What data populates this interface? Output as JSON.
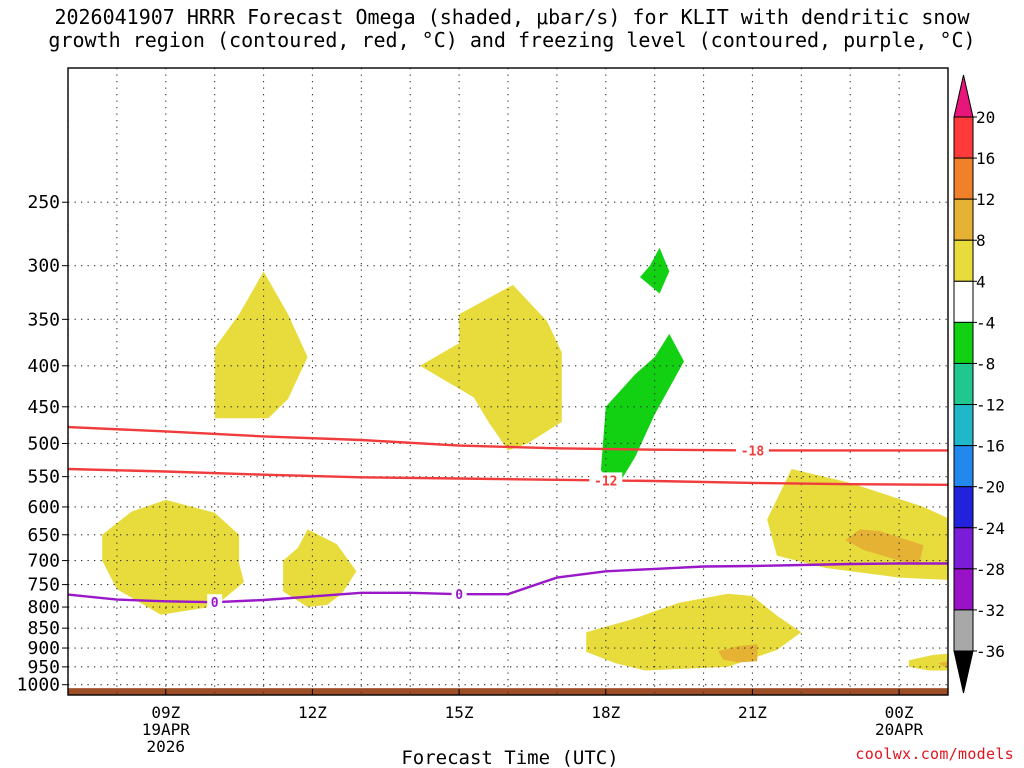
{
  "title": {
    "line1": "2026041907 HRRR Forecast Omega (shaded, μbar/s) for KLIT with dendritic snow",
    "line2": "growth region (contoured, red, °C) and freezing level (contoured, purple, °C)"
  },
  "credit": "coolwx.com/models",
  "chart_data": {
    "type": "contour",
    "xlabel": "Forecast Time (UTC)",
    "ylabel": "",
    "xlim": [
      7,
      25
    ],
    "ylim_hPa": [
      1030,
      170
    ],
    "y_scale": "log-pressure",
    "grid": true,
    "y_ticks": [
      250,
      300,
      350,
      400,
      450,
      500,
      550,
      600,
      650,
      700,
      750,
      800,
      850,
      900,
      950,
      1000
    ],
    "x_ticks": [
      {
        "x": 9,
        "lines": [
          "09Z",
          "19APR",
          "2026"
        ]
      },
      {
        "x": 12,
        "lines": [
          "12Z"
        ]
      },
      {
        "x": 15,
        "lines": [
          "15Z"
        ]
      },
      {
        "x": 18,
        "lines": [
          "18Z"
        ]
      },
      {
        "x": 21,
        "lines": [
          "21Z"
        ]
      },
      {
        "x": 24,
        "lines": [
          "00Z",
          "20APR"
        ]
      }
    ],
    "colorbar": {
      "levels": [
        20,
        16,
        12,
        8,
        4,
        -4,
        -8,
        -12,
        -16,
        -20,
        -24,
        -28,
        -32,
        -36
      ],
      "colors": [
        "#ff3a3a",
        "#f0802a",
        "#e6b234",
        "#e8dc3c",
        "#ffffff",
        "#12d012",
        "#20c890",
        "#20b8c8",
        "#2288ee",
        "#2222dd",
        "#7a1cd8",
        "#9a12c8",
        "#a8a8a8"
      ],
      "top_color": "#e8167a",
      "bottom_color": "#000000"
    },
    "contours": [
      {
        "name": "dendritic snow growth region",
        "color": "#f03c3c",
        "label": "-18",
        "label_x": 21.0,
        "points": [
          [
            7,
            477
          ],
          [
            9,
            483
          ],
          [
            11,
            490
          ],
          [
            13,
            495
          ],
          [
            15,
            503
          ],
          [
            17,
            507
          ],
          [
            19,
            509
          ],
          [
            21,
            510
          ],
          [
            23,
            510
          ],
          [
            25,
            510
          ]
        ]
      },
      {
        "name": "dendritic snow growth region",
        "color": "#f03c3c",
        "label": "-12",
        "label_x": 18.0,
        "points": [
          [
            7,
            538
          ],
          [
            9,
            542
          ],
          [
            11,
            547
          ],
          [
            13,
            551
          ],
          [
            15,
            553
          ],
          [
            17,
            555
          ],
          [
            19,
            557
          ],
          [
            21,
            560
          ],
          [
            23,
            562
          ],
          [
            25,
            563
          ]
        ]
      },
      {
        "name": "freezing level",
        "color": "#9a18c8",
        "label": "0",
        "label_x": 10.0,
        "points": [
          [
            7,
            772
          ],
          [
            8,
            783
          ],
          [
            9,
            787
          ],
          [
            10,
            789
          ],
          [
            11,
            784
          ],
          [
            12,
            776
          ],
          [
            13,
            768
          ],
          [
            14,
            768
          ],
          [
            15,
            771
          ],
          [
            16,
            771
          ],
          [
            17,
            735
          ],
          [
            18,
            722
          ],
          [
            19,
            717
          ],
          [
            20,
            712
          ],
          [
            21,
            711
          ],
          [
            22,
            709
          ],
          [
            23,
            707
          ],
          [
            24,
            706
          ],
          [
            25,
            706
          ]
        ],
        "extra_label_x": 15.0
      }
    ],
    "omega_regions": [
      {
        "level": "4 to 8",
        "color": "#e8dc3c",
        "points": [
          [
            10,
            380
          ],
          [
            10.5,
            345
          ],
          [
            11,
            305
          ],
          [
            11.5,
            345
          ],
          [
            11.9,
            390
          ],
          [
            11.5,
            440
          ],
          [
            11.1,
            465
          ],
          [
            10,
            465
          ]
        ]
      },
      {
        "level": "4 to 8",
        "color": "#e8dc3c",
        "points": [
          [
            15,
            345
          ],
          [
            16.1,
            317
          ],
          [
            16.8,
            352
          ],
          [
            17.1,
            385
          ],
          [
            17.1,
            470
          ],
          [
            16.4,
            500
          ],
          [
            16.0,
            510
          ],
          [
            15.6,
            470
          ],
          [
            15.3,
            438
          ],
          [
            14.2,
            400
          ],
          [
            15,
            375
          ]
        ]
      },
      {
        "level": "-8 to -4",
        "color": "#12d012",
        "points": [
          [
            18.9,
            300
          ],
          [
            19.1,
            285
          ],
          [
            19.3,
            305
          ],
          [
            19.1,
            325
          ],
          [
            18.7,
            310
          ]
        ]
      },
      {
        "level": "-8 to -4",
        "color": "#12d012",
        "points": [
          [
            19.0,
            390
          ],
          [
            19.3,
            365
          ],
          [
            19.6,
            395
          ],
          [
            19.0,
            460
          ],
          [
            18.6,
            520
          ],
          [
            18.2,
            570
          ],
          [
            17.9,
            540
          ],
          [
            18.0,
            450
          ],
          [
            18.6,
            410
          ]
        ]
      },
      {
        "level": "4 to 8",
        "color": "#e8dc3c",
        "points": [
          [
            7.7,
            650
          ],
          [
            8.3,
            608
          ],
          [
            9.0,
            588
          ],
          [
            10.0,
            610
          ],
          [
            10.5,
            650
          ],
          [
            10.5,
            705
          ],
          [
            10.6,
            745
          ],
          [
            10.0,
            798
          ],
          [
            8.9,
            818
          ],
          [
            8.0,
            760
          ],
          [
            7.7,
            700
          ]
        ]
      },
      {
        "level": "4 to 8",
        "color": "#e8dc3c",
        "points": [
          [
            11.4,
            700
          ],
          [
            11.7,
            675
          ],
          [
            11.9,
            640
          ],
          [
            12.5,
            668
          ],
          [
            12.9,
            722
          ],
          [
            12.6,
            770
          ],
          [
            12.3,
            795
          ],
          [
            11.9,
            800
          ],
          [
            11.4,
            765
          ]
        ]
      },
      {
        "level": "4 to 8",
        "color": "#e8dc3c",
        "points": [
          [
            21.3,
            622
          ],
          [
            21.8,
            538
          ],
          [
            23.0,
            560
          ],
          [
            24.5,
            600
          ],
          [
            25.1,
            620
          ],
          [
            25.1,
            740
          ],
          [
            24.0,
            735
          ],
          [
            22.5,
            715
          ],
          [
            21.5,
            690
          ]
        ]
      },
      {
        "level": "8 to 12",
        "color": "#e6b234",
        "points": [
          [
            23.6,
            643
          ],
          [
            24.5,
            670
          ],
          [
            24.4,
            710
          ],
          [
            24.0,
            700
          ],
          [
            23.3,
            680
          ],
          [
            22.9,
            660
          ],
          [
            23.2,
            640
          ]
        ]
      },
      {
        "level": "4 to 8",
        "color": "#e8dc3c",
        "points": [
          [
            17.6,
            860
          ],
          [
            18.5,
            830
          ],
          [
            19.5,
            790
          ],
          [
            20.5,
            770
          ],
          [
            21.0,
            775
          ],
          [
            21.5,
            820
          ],
          [
            22.0,
            860
          ],
          [
            21.5,
            905
          ],
          [
            20.5,
            950
          ],
          [
            18.8,
            960
          ],
          [
            18.2,
            940
          ],
          [
            17.6,
            910
          ]
        ]
      },
      {
        "level": "8 to 12",
        "color": "#e6b234",
        "points": [
          [
            20.7,
            895
          ],
          [
            21.1,
            890
          ],
          [
            21.1,
            935
          ],
          [
            20.7,
            938
          ],
          [
            20.4,
            930
          ],
          [
            20.3,
            908
          ]
        ]
      },
      {
        "level": "4 to 8",
        "color": "#e8dc3c",
        "points": [
          [
            24.2,
            932
          ],
          [
            24.7,
            918
          ],
          [
            25.1,
            915
          ],
          [
            25.1,
            960
          ],
          [
            24.6,
            960
          ],
          [
            24.2,
            950
          ]
        ]
      },
      {
        "level": "8 to 12",
        "color": "#e6b234",
        "points": [
          [
            24.8,
            940
          ],
          [
            25.1,
            935
          ],
          [
            25.1,
            950
          ],
          [
            24.9,
            948
          ]
        ]
      }
    ],
    "terrain": {
      "color": "#9e4e27",
      "top_hPa": 1010
    }
  }
}
